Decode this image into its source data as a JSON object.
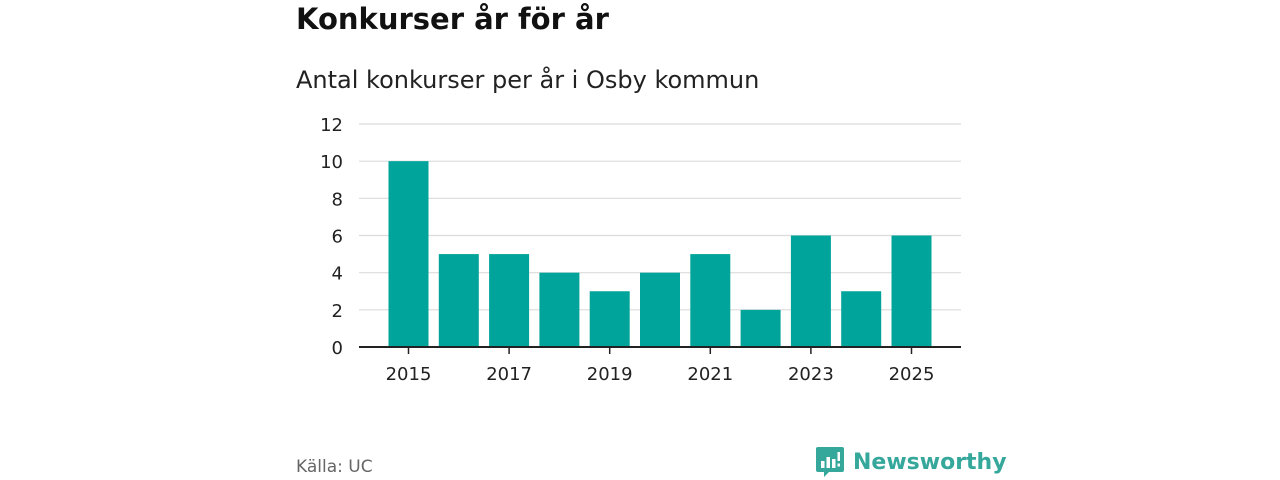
{
  "header": {
    "title": "Konkurser år för år",
    "subtitle": "Antal konkurser per år i Osby kommun"
  },
  "footer": {
    "source": "Källa: UC",
    "brand": "Newsworthy",
    "brand_icon": "bar-chart-logo-icon",
    "brand_color": "#35a79b"
  },
  "chart_data": {
    "type": "bar",
    "title": "Konkurser år för år",
    "subtitle": "Antal konkurser per år i Osby kommun",
    "xlabel": "",
    "ylabel": "",
    "categories": [
      "2015",
      "2016",
      "2017",
      "2018",
      "2019",
      "2020",
      "2021",
      "2022",
      "2023",
      "2024",
      "2025"
    ],
    "values": [
      10,
      5,
      5,
      4,
      3,
      4,
      5,
      2,
      6,
      3,
      6
    ],
    "x_tick_labels": [
      "2015",
      "2017",
      "2019",
      "2021",
      "2023",
      "2025"
    ],
    "y_ticks": [
      0,
      2,
      4,
      6,
      8,
      10,
      12
    ],
    "ylim": [
      0,
      12
    ],
    "grid": true,
    "bar_color": "#00a49a"
  }
}
